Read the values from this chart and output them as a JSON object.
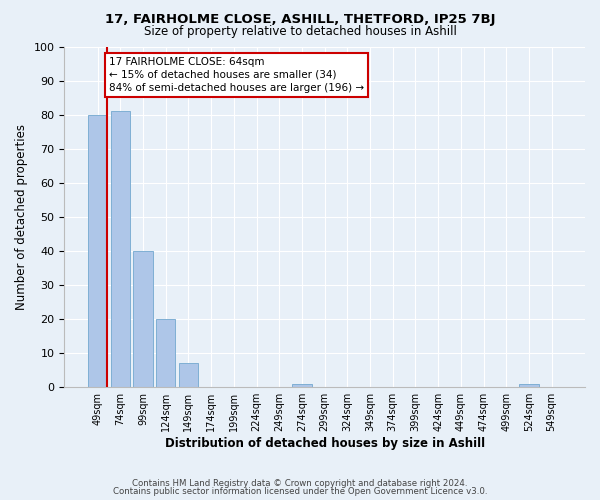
{
  "title": "17, FAIRHOLME CLOSE, ASHILL, THETFORD, IP25 7BJ",
  "subtitle": "Size of property relative to detached houses in Ashill",
  "xlabel": "Distribution of detached houses by size in Ashill",
  "ylabel": "Number of detached properties",
  "categories": [
    "49sqm",
    "74sqm",
    "99sqm",
    "124sqm",
    "149sqm",
    "174sqm",
    "199sqm",
    "224sqm",
    "249sqm",
    "274sqm",
    "299sqm",
    "324sqm",
    "349sqm",
    "374sqm",
    "399sqm",
    "424sqm",
    "449sqm",
    "474sqm",
    "499sqm",
    "524sqm",
    "549sqm"
  ],
  "values": [
    80,
    81,
    40,
    20,
    7,
    0,
    0,
    0,
    0,
    1,
    0,
    0,
    0,
    0,
    0,
    0,
    0,
    0,
    0,
    1,
    0
  ],
  "bar_color": "#aec6e8",
  "bar_edge_color": "#7fafd4",
  "marker_line_color": "#cc0000",
  "ylim": [
    0,
    100
  ],
  "yticks": [
    0,
    10,
    20,
    30,
    40,
    50,
    60,
    70,
    80,
    90,
    100
  ],
  "annotation_box_text": "17 FAIRHOLME CLOSE: 64sqm\n← 15% of detached houses are smaller (34)\n84% of semi-detached houses are larger (196) →",
  "bg_color": "#e8f0f8",
  "footer_line1": "Contains HM Land Registry data © Crown copyright and database right 2024.",
  "footer_line2": "Contains public sector information licensed under the Open Government Licence v3.0."
}
